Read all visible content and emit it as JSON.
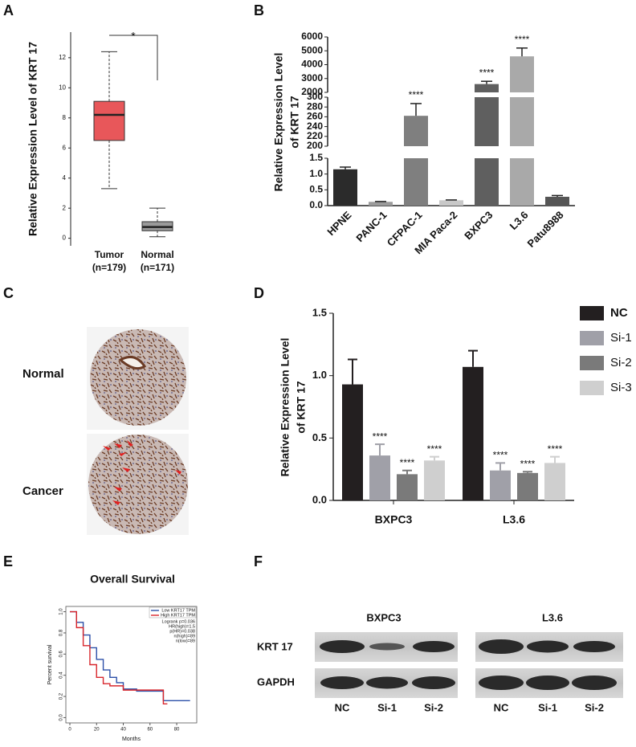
{
  "panel_labels": [
    "A",
    "B",
    "C",
    "D",
    "E",
    "F"
  ],
  "chart_data": [
    {
      "type": "box",
      "ylabel": "Relative Expression  Level   of KRT 17",
      "categories": [
        "Tumor",
        "Normal"
      ],
      "n_labels": [
        "(n=179)",
        "(n=171)"
      ],
      "boxes": [
        {
          "whislo": 3.3,
          "q1": 6.5,
          "med": 8.2,
          "q3": 9.1,
          "whishi": 12.4,
          "color": "#e8575a"
        },
        {
          "whislo": 0.1,
          "q1": 0.5,
          "med": 0.75,
          "q3": 1.1,
          "whishi": 2.0,
          "color": "#9a9a9a"
        }
      ],
      "ylim": [
        -0.5,
        13.7
      ],
      "yticks": [
        0,
        2,
        4,
        6,
        8,
        10,
        12
      ],
      "annotations": [
        {
          "text": "*",
          "color": "#e8575a"
        }
      ]
    },
    {
      "type": "broken_bar",
      "ylabel": [
        "Relative Expression  Level",
        "of KRT 17"
      ],
      "categories": [
        "HPNE",
        "PANC-1",
        "CFPAC-1",
        "MIA Paca-2",
        "BXPC3",
        "L3.6",
        "Patu8988"
      ],
      "values": [
        1.15,
        0.12,
        262,
        0.17,
        2600,
        4600,
        0.28
      ],
      "errors": [
        0.07,
        0.01,
        25,
        0.01,
        200,
        600,
        0.04
      ],
      "colors": [
        "#2b2b2b",
        "#9c9c9c",
        "#7f7f7f",
        "#c8c8c8",
        "#5f5f5f",
        "#a9a9a9",
        "#555555"
      ],
      "segments": [
        {
          "ylim": [
            0,
            1.5
          ],
          "yticks": [
            {
              "value": 0,
              "label": "0.0"
            },
            0.5,
            {
              "value": 1,
              "label": "1.0"
            },
            1.5
          ]
        },
        {
          "ylim": [
            200,
            300
          ],
          "yticks": [
            200,
            220,
            240,
            260,
            280,
            300
          ]
        },
        {
          "ylim": [
            2000,
            6000
          ],
          "yticks": [
            2000,
            3000,
            4000,
            5000,
            6000
          ]
        }
      ],
      "annotations": [
        {
          "category": 2,
          "text": "****"
        },
        {
          "category": 4,
          "text": "****"
        },
        {
          "category": 5,
          "text": "****"
        }
      ]
    },
    {
      "type": "grouped_bar",
      "ylabel": [
        "Relative Expression  Level",
        "of KRT 17"
      ],
      "categories": [
        "BXPC3",
        "L3.6"
      ],
      "series": [
        {
          "name": "NC",
          "color": "#231f20",
          "values": [
            0.93,
            1.07
          ],
          "errors": [
            0.2,
            0.13
          ]
        },
        {
          "name": "Si-1",
          "color": "#a0a0a8",
          "values": [
            0.36,
            0.24
          ],
          "errors": [
            0.09,
            0.06
          ]
        },
        {
          "name": "Si-2",
          "color": "#7a7a7a",
          "values": [
            0.21,
            0.22
          ],
          "errors": [
            0.03,
            0.01
          ]
        },
        {
          "name": "Si-3",
          "color": "#cfcfcf",
          "values": [
            0.32,
            0.3
          ],
          "errors": [
            0.03,
            0.05
          ]
        }
      ],
      "ylim": [
        0,
        1.5
      ],
      "yticks": [
        {
          "value": 0,
          "label": "0.0"
        },
        0.5,
        {
          "value": 1,
          "label": "1.0"
        },
        1.5
      ],
      "annotations": [
        {
          "series": 1,
          "category": 0,
          "text": "****"
        },
        {
          "series": 2,
          "category": 0,
          "text": "****"
        },
        {
          "series": 3,
          "category": 0,
          "text": "****"
        },
        {
          "series": 1,
          "category": 1,
          "text": "****"
        },
        {
          "series": 2,
          "category": 1,
          "text": "****"
        },
        {
          "series": 3,
          "category": 1,
          "text": "****"
        }
      ]
    },
    {
      "type": "survival",
      "title": "Overall Survival",
      "xlabel": "Months",
      "ylabel": "Percent survival",
      "series": [
        {
          "name": "Low KRT17 TPM",
          "color": "#2b4fa8",
          "x": [
            0,
            5,
            10,
            15,
            20,
            25,
            30,
            35,
            40,
            50,
            60,
            70,
            90
          ],
          "values": [
            1,
            0.9,
            0.78,
            0.66,
            0.55,
            0.45,
            0.38,
            0.33,
            0.27,
            0.25,
            0.25,
            0.16,
            0.16
          ]
        },
        {
          "name": "High KRT17 TPM",
          "color": "#d8262c",
          "x": [
            0,
            5,
            10,
            15,
            20,
            25,
            30,
            40,
            50,
            65,
            70,
            73
          ],
          "values": [
            1,
            0.85,
            0.68,
            0.5,
            0.38,
            0.32,
            0.3,
            0.26,
            0.26,
            0.26,
            0.13,
            0.13
          ]
        }
      ],
      "stats": [
        "Logrank p=0.036",
        "HR(high)=1.5",
        "p(HR)=0.038",
        "n(high)=89",
        "n(low)=89"
      ],
      "xlim": [
        -3,
        95
      ],
      "xticks": [
        0,
        20,
        40,
        60,
        80
      ],
      "ylim": [
        -0.05,
        1.05
      ],
      "yticks": [
        {
          "value": 0,
          "label": "0.0"
        },
        0.2,
        0.4,
        0.6,
        0.8,
        {
          "value": 1,
          "label": "1.0"
        }
      ]
    }
  ],
  "ihc": {
    "labels": [
      "Normal",
      "Cancer"
    ]
  },
  "western": {
    "groups": [
      "BXPC3",
      "L3.6"
    ],
    "rows": [
      "KRT 17",
      "GAPDH"
    ],
    "lanes": [
      "NC",
      "Si-1",
      "Si-2",
      "NC",
      "Si-1",
      "Si-2"
    ]
  }
}
